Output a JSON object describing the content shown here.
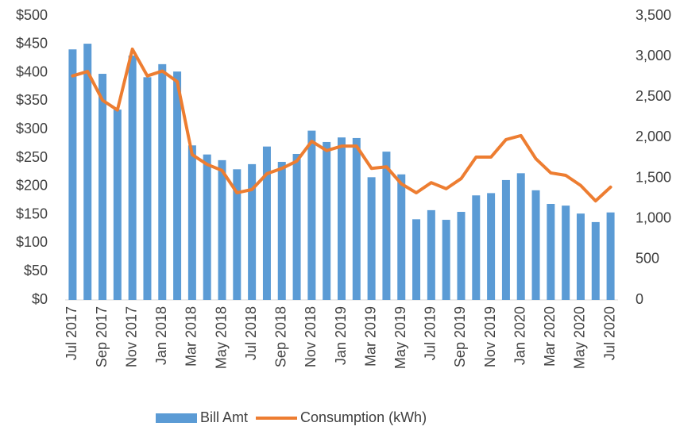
{
  "chart_data": {
    "type": "bar-line",
    "categories": [
      "Jul 2017",
      null,
      "Sep 2017",
      null,
      "Nov 2017",
      null,
      "Jan 2018",
      null,
      "Mar 2018",
      null,
      "May 2018",
      null,
      "Jul 2018",
      null,
      "Sep 2018",
      null,
      "Nov 2018",
      null,
      "Jan 2019",
      null,
      "Mar 2019",
      null,
      "May 2019",
      null,
      "Jul 2019",
      null,
      "Sep 2019",
      null,
      "Nov 2019",
      null,
      "Jan 2020",
      null,
      "Mar 2020",
      null,
      "May 2020",
      null,
      "Jul 2020"
    ],
    "series": [
      {
        "name": "Bill Amt",
        "type": "bar",
        "color": "#5b9bd5",
        "values": [
          441,
          451,
          398,
          335,
          430,
          392,
          415,
          402,
          272,
          256,
          246,
          230,
          239,
          270,
          243,
          257,
          298,
          278,
          286,
          285,
          216,
          261,
          221,
          142,
          158,
          141,
          155,
          184,
          188,
          211,
          223,
          193,
          169,
          166,
          152,
          137,
          154
        ]
      },
      {
        "name": "Consumption (kWh)",
        "type": "line",
        "axis": "y2",
        "color": "#ed7d31",
        "values": [
          2760,
          2815,
          2460,
          2340,
          3090,
          2760,
          2820,
          2690,
          1790,
          1670,
          1595,
          1320,
          1360,
          1555,
          1620,
          1710,
          1955,
          1840,
          1895,
          1895,
          1620,
          1640,
          1430,
          1320,
          1445,
          1370,
          1495,
          1760,
          1760,
          1975,
          2025,
          1740,
          1565,
          1535,
          1410,
          1220,
          1390
        ]
      }
    ],
    "ylim": [
      0,
      500
    ],
    "yticks": [
      {
        "value": 0,
        "label": "$0"
      },
      {
        "value": 50,
        "label": "$50"
      },
      {
        "value": 100,
        "label": "$100"
      },
      {
        "value": 150,
        "label": "$150"
      },
      {
        "value": 200,
        "label": "$200"
      },
      {
        "value": 250,
        "label": "$250"
      },
      {
        "value": 300,
        "label": "$300"
      },
      {
        "value": 350,
        "label": "$350"
      },
      {
        "value": 400,
        "label": "$400"
      },
      {
        "value": 450,
        "label": "$450"
      },
      {
        "value": 500,
        "label": "$500"
      }
    ],
    "y2lim": [
      0,
      3500
    ],
    "y2ticks": [
      0,
      500,
      {
        "value": 1000,
        "label": "1,000"
      },
      {
        "value": 1500,
        "label": "1,500"
      },
      {
        "value": 2000,
        "label": "2,000"
      },
      {
        "value": 2500,
        "label": "2,500"
      },
      {
        "value": 3000,
        "label": "3,000"
      },
      {
        "value": 3500,
        "label": "3,500"
      }
    ],
    "legend": "bottom"
  }
}
